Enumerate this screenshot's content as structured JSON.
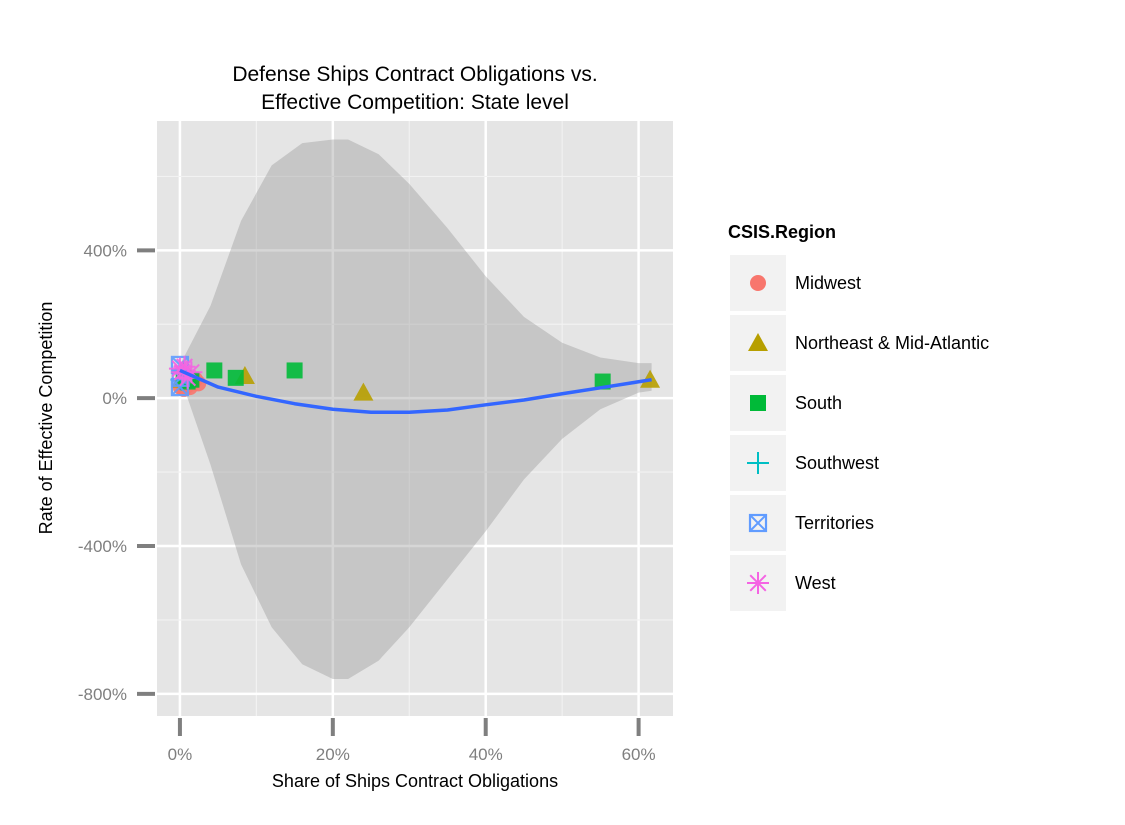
{
  "chart_data": {
    "type": "scatter",
    "title_lines": [
      "Defense Ships Contract Obligations vs.",
      "Effective Competition: State level"
    ],
    "xlabel": "Share of Ships Contract Obligations",
    "ylabel": "Rate of Effective Competition",
    "xlim": [
      -0.03,
      0.645
    ],
    "ylim": [
      -8.6,
      7.5
    ],
    "x_ticks": [
      {
        "value": 0,
        "label": "0%"
      },
      {
        "value": 0.2,
        "label": "20%"
      },
      {
        "value": 0.4,
        "label": "40%"
      },
      {
        "value": 0.6,
        "label": "60%"
      }
    ],
    "y_ticks": [
      {
        "value": -8,
        "label": "-800%"
      },
      {
        "value": -4,
        "label": "-400%"
      },
      {
        "value": 0,
        "label": "0%"
      },
      {
        "value": 4,
        "label": "400%"
      }
    ],
    "grid": true,
    "legend": {
      "title": "CSIS.Region",
      "position": "right",
      "items": [
        {
          "label": "Midwest",
          "shape": "circle",
          "color": "#f8766d"
        },
        {
          "label": "Northeast & Mid-Atlantic",
          "shape": "triangle",
          "color": "#b79f00"
        },
        {
          "label": "South",
          "shape": "square",
          "color": "#00ba38"
        },
        {
          "label": "Southwest",
          "shape": "plus",
          "color": "#00bfc4"
        },
        {
          "label": "Territories",
          "shape": "boxx",
          "color": "#619cff"
        },
        {
          "label": "West",
          "shape": "asterisk",
          "color": "#f564e3"
        }
      ]
    },
    "series": [
      {
        "name": "Midwest",
        "points": [
          [
            0.001,
            0.3
          ],
          [
            0.003,
            0.45
          ],
          [
            0.005,
            0.25
          ],
          [
            0.007,
            0.4
          ],
          [
            0.01,
            0.35
          ],
          [
            0.013,
            0.3
          ],
          [
            0.016,
            0.45
          ],
          [
            0.02,
            0.5
          ],
          [
            0.024,
            0.4
          ]
        ]
      },
      {
        "name": "Northeast & Mid-Atlantic",
        "points": [
          [
            0.002,
            0.5
          ],
          [
            0.005,
            0.6
          ],
          [
            0.012,
            0.55
          ],
          [
            0.085,
            0.6
          ],
          [
            0.24,
            0.15
          ],
          [
            0.615,
            0.5
          ]
        ]
      },
      {
        "name": "South",
        "points": [
          [
            0.005,
            0.55
          ],
          [
            0.01,
            0.45
          ],
          [
            0.015,
            0.5
          ],
          [
            0.045,
            0.75
          ],
          [
            0.073,
            0.55
          ],
          [
            0.15,
            0.75
          ],
          [
            0.553,
            0.45
          ]
        ]
      },
      {
        "name": "Southwest",
        "points": [
          [
            0.002,
            0.5
          ],
          [
            0.004,
            0.7
          ]
        ]
      },
      {
        "name": "Territories",
        "points": [
          [
            0.0,
            0.9
          ],
          [
            0.0,
            0.3
          ],
          [
            0.001,
            0.55
          ]
        ]
      },
      {
        "name": "West",
        "points": [
          [
            0.0,
            0.8
          ],
          [
            0.003,
            0.7
          ],
          [
            0.006,
            0.85
          ],
          [
            0.01,
            0.55
          ],
          [
            0.015,
            0.7
          ]
        ]
      }
    ],
    "smooth_line": {
      "color": "#3366ff",
      "points": [
        [
          0.0,
          0.75
        ],
        [
          0.05,
          0.3
        ],
        [
          0.1,
          0.05
        ],
        [
          0.15,
          -0.15
        ],
        [
          0.2,
          -0.3
        ],
        [
          0.25,
          -0.38
        ],
        [
          0.3,
          -0.38
        ],
        [
          0.35,
          -0.32
        ],
        [
          0.4,
          -0.18
        ],
        [
          0.45,
          -0.05
        ],
        [
          0.5,
          0.12
        ],
        [
          0.55,
          0.28
        ],
        [
          0.617,
          0.5
        ]
      ]
    },
    "confidence_band": {
      "color": "#999999",
      "x": [
        0.0,
        0.04,
        0.08,
        0.12,
        0.16,
        0.2,
        0.22,
        0.26,
        0.3,
        0.35,
        0.4,
        0.45,
        0.5,
        0.55,
        0.6,
        0.617
      ],
      "upper": [
        0.9,
        2.5,
        4.8,
        6.3,
        6.9,
        7.0,
        7.0,
        6.6,
        5.8,
        4.6,
        3.3,
        2.2,
        1.5,
        1.1,
        0.95,
        0.95
      ],
      "lower": [
        0.6,
        -1.8,
        -4.5,
        -6.2,
        -7.2,
        -7.6,
        -7.6,
        -7.1,
        -6.2,
        -4.9,
        -3.6,
        -2.2,
        -1.1,
        -0.3,
        0.15,
        0.2
      ]
    },
    "panel_colors": {
      "background": "#e5e5e5",
      "grid_major": "#ffffff",
      "grid_minor": "#f2f2f2",
      "legend_key": "#f2f2f2"
    }
  }
}
